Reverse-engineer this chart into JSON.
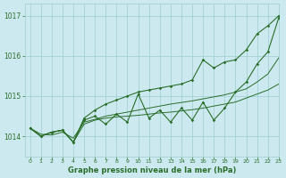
{
  "title": "Graphe pression niveau de la mer (hPa)",
  "xlim": [
    -0.5,
    23
  ],
  "ylim": [
    1013.5,
    1017.3
  ],
  "yticks": [
    1014,
    1015,
    1016,
    1017
  ],
  "xticks": [
    0,
    1,
    2,
    3,
    4,
    5,
    6,
    7,
    8,
    9,
    10,
    11,
    12,
    13,
    14,
    15,
    16,
    17,
    18,
    19,
    20,
    21,
    22,
    23
  ],
  "bg_color": "#cce9f0",
  "grid_color": "#9ecfcf",
  "line_color": "#2a6e2a",
  "hours": [
    0,
    1,
    2,
    3,
    4,
    5,
    6,
    7,
    8,
    9,
    10,
    11,
    12,
    13,
    14,
    15,
    16,
    17,
    18,
    19,
    20,
    21,
    22,
    23
  ],
  "pressure_zigzag": [
    1014.2,
    1014.0,
    1014.1,
    1014.15,
    1013.85,
    1014.4,
    1014.5,
    1014.3,
    1014.55,
    1014.35,
    1015.05,
    1014.45,
    1014.65,
    1014.35,
    1014.7,
    1014.4,
    1014.85,
    1014.4,
    1014.7,
    1015.1,
    1015.35,
    1015.8,
    1016.1,
    1016.95
  ],
  "pressure_upper": [
    1014.2,
    1014.0,
    1014.1,
    1014.15,
    1013.85,
    1014.45,
    1014.65,
    1014.8,
    1014.9,
    1015.0,
    1015.1,
    1015.15,
    1015.2,
    1015.25,
    1015.3,
    1015.4,
    1015.9,
    1015.7,
    1015.85,
    1015.9,
    1016.15,
    1016.55,
    1016.75,
    1017.0
  ],
  "pressure_lower": [
    1014.2,
    1014.0,
    1014.1,
    1014.15,
    1013.85,
    1014.3,
    1014.4,
    1014.45,
    1014.48,
    1014.5,
    1014.52,
    1014.55,
    1014.58,
    1014.6,
    1014.63,
    1014.66,
    1014.7,
    1014.75,
    1014.8,
    1014.85,
    1014.95,
    1015.05,
    1015.15,
    1015.3
  ],
  "pressure_trend": [
    1014.2,
    1014.05,
    1014.03,
    1014.1,
    1013.95,
    1014.35,
    1014.42,
    1014.5,
    1014.55,
    1014.6,
    1014.65,
    1014.7,
    1014.75,
    1014.8,
    1014.84,
    1014.88,
    1014.93,
    1014.98,
    1015.03,
    1015.1,
    1015.18,
    1015.35,
    1015.55,
    1015.95
  ]
}
